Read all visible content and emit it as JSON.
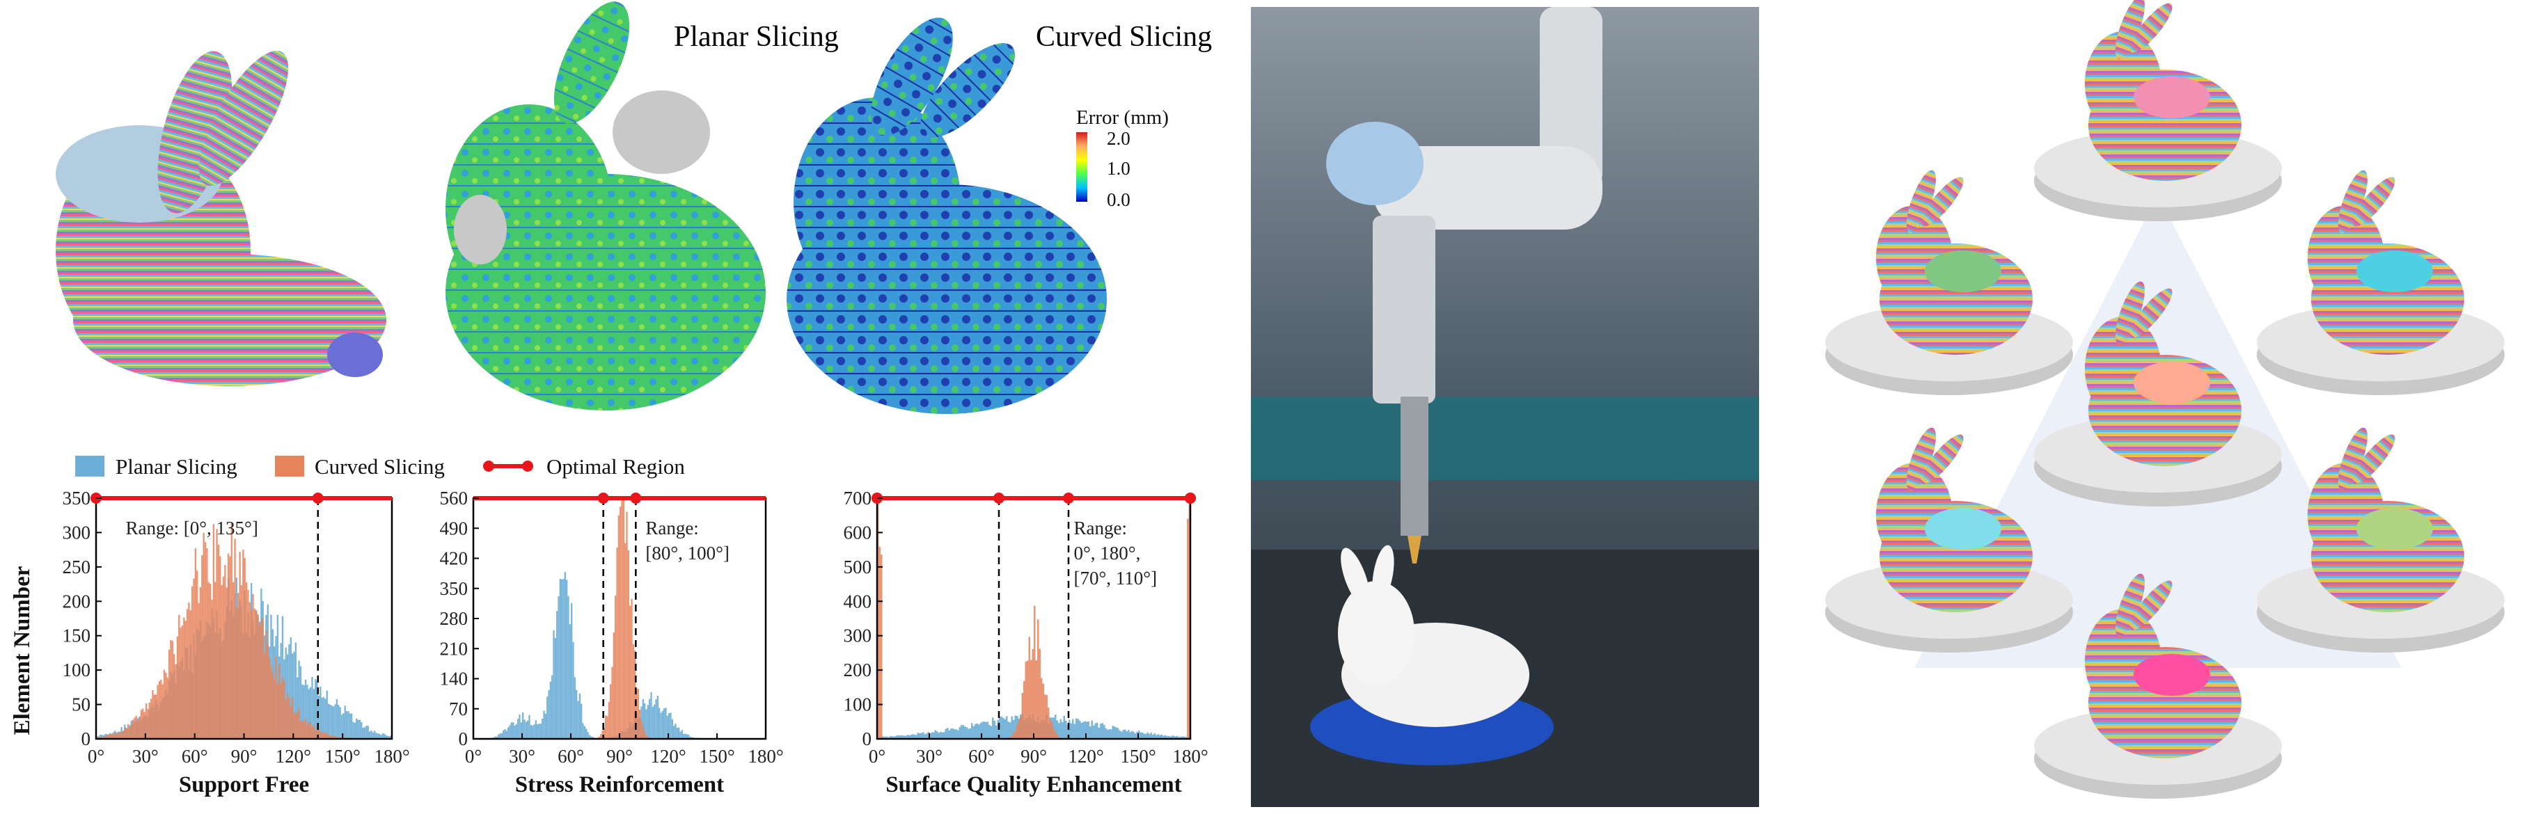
{
  "figure": {
    "top_labels": {
      "planar": "Planar Slicing",
      "curved": "Curved Slicing"
    },
    "colorbar": {
      "title": "Error (mm)",
      "ticks": [
        "2.0",
        "1.0",
        "0.0"
      ]
    },
    "colorbar_colors": [
      "#d7191c",
      "#fdae61",
      "#ffff00",
      "#4dff4d",
      "#00c0ff",
      "#0000c0"
    ],
    "legend": [
      "Planar Slicing",
      "Curved Slicing",
      "Optimal Region"
    ],
    "series_colors": {
      "planar": "#6baed6",
      "curved": "#e6845c",
      "optimal": "#e8161b"
    },
    "ylabel": "Element Number"
  },
  "chart_data": [
    {
      "type": "bar",
      "title": "Support Free",
      "ylabel": "Element Number",
      "annotation": "Range: [0°, 135°]",
      "x_ticks": [
        "0°",
        "30°",
        "60°",
        "90°",
        "120°",
        "150°",
        "180°"
      ],
      "xlim": [
        0,
        180
      ],
      "y_ticks": [
        "0",
        "50",
        "100",
        "150",
        "200",
        "250",
        "300",
        "350"
      ],
      "ylim": [
        0,
        350
      ],
      "optimal_region": [
        [
          0,
          135
        ]
      ],
      "dashed_lines": [
        135
      ],
      "series": [
        {
          "name": "Planar Slicing",
          "peak_at": 88,
          "peak_value": 195
        },
        {
          "name": "Curved Slicing",
          "peak_at": 75,
          "peak_value": 270
        }
      ]
    },
    {
      "type": "bar",
      "title": "Stress Reinforcement",
      "annotation": "Range: [80°, 100°]",
      "x_ticks": [
        "0°",
        "30°",
        "60°",
        "90°",
        "120°",
        "150°",
        "180°"
      ],
      "xlim": [
        0,
        180
      ],
      "y_ticks": [
        "0",
        "70",
        "140",
        "210",
        "280",
        "350",
        "420",
        "490",
        "560"
      ],
      "ylim": [
        0,
        560
      ],
      "optimal_region": [
        [
          80,
          100
        ]
      ],
      "dashed_lines": [
        80,
        100
      ],
      "series": [
        {
          "name": "Planar Slicing",
          "peak_at": 55,
          "peak_value": 360
        },
        {
          "name": "Curved Slicing",
          "peak_at": 92,
          "peak_value": 520
        }
      ]
    },
    {
      "type": "bar",
      "title": "Surface Quality Enhancement",
      "annotation_lines": [
        "Range:",
        "0°, 180°,",
        "[70°, 110°]"
      ],
      "x_ticks": [
        "0°",
        "30°",
        "60°",
        "90°",
        "120°",
        "150°",
        "180°"
      ],
      "xlim": [
        0,
        180
      ],
      "y_ticks": [
        "0",
        "100",
        "200",
        "300",
        "400",
        "500",
        "600",
        "700"
      ],
      "ylim": [
        0,
        700
      ],
      "optimal_region": [
        [
          0,
          0
        ],
        [
          70,
          110
        ],
        [
          180,
          180
        ]
      ],
      "dashed_lines": [
        70,
        110
      ],
      "series": [
        {
          "name": "Planar Slicing",
          "peak_at": 90,
          "peak_value": 60
        },
        {
          "name": "Curved Slicing",
          "peak_at": 90,
          "peak_value": 310
        }
      ]
    }
  ]
}
